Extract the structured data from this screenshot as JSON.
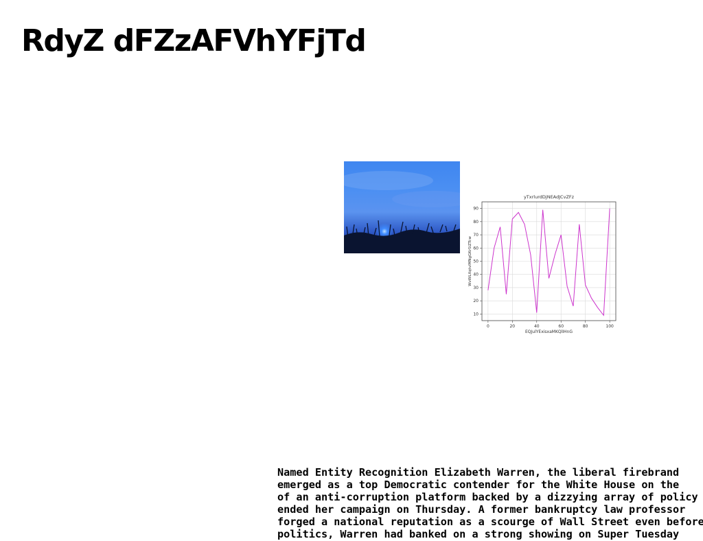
{
  "page": {
    "title": "RdyZ dFZzAFVhYFjTd"
  },
  "image": {
    "alt_icon": "landscape-photo"
  },
  "chart_data": {
    "type": "line",
    "title": "yTxrlurdDjNEAdJCvZFz",
    "xlabel": "EQJulYExisxaMKQlIHnG",
    "ylabel": "WvWLXqtvlMNgGKrSiZTcw",
    "x": [
      0,
      5,
      10,
      15,
      20,
      25,
      30,
      35,
      40,
      45,
      50,
      55,
      60,
      65,
      70,
      75,
      80,
      85,
      90,
      95,
      100
    ],
    "y": [
      28,
      60,
      76,
      25,
      82,
      87,
      78,
      55,
      11,
      89,
      37,
      55,
      70,
      31,
      16,
      78,
      32,
      22,
      15,
      9,
      90
    ],
    "xlim": [
      -5,
      105
    ],
    "ylim": [
      5,
      95
    ],
    "xticks": [
      0,
      20,
      40,
      60,
      80,
      100
    ],
    "yticks": [
      10,
      20,
      30,
      40,
      50,
      60,
      70,
      80,
      90
    ],
    "grid": true,
    "line_color": "#cc33cc"
  },
  "article": {
    "lines": [
      "Named Entity Recognition Elizabeth Warren, the liberal firebrand",
      "emerged as a top Democratic contender for the White House on the",
      "of an anti-corruption platform backed by a dizzying array of policy",
      "ended her campaign on Thursday. A former bankruptcy law professor",
      "forged a national reputation as a scourge of Wall Street even before",
      "politics, Warren had banked on a strong showing on Super Tuesday"
    ]
  }
}
